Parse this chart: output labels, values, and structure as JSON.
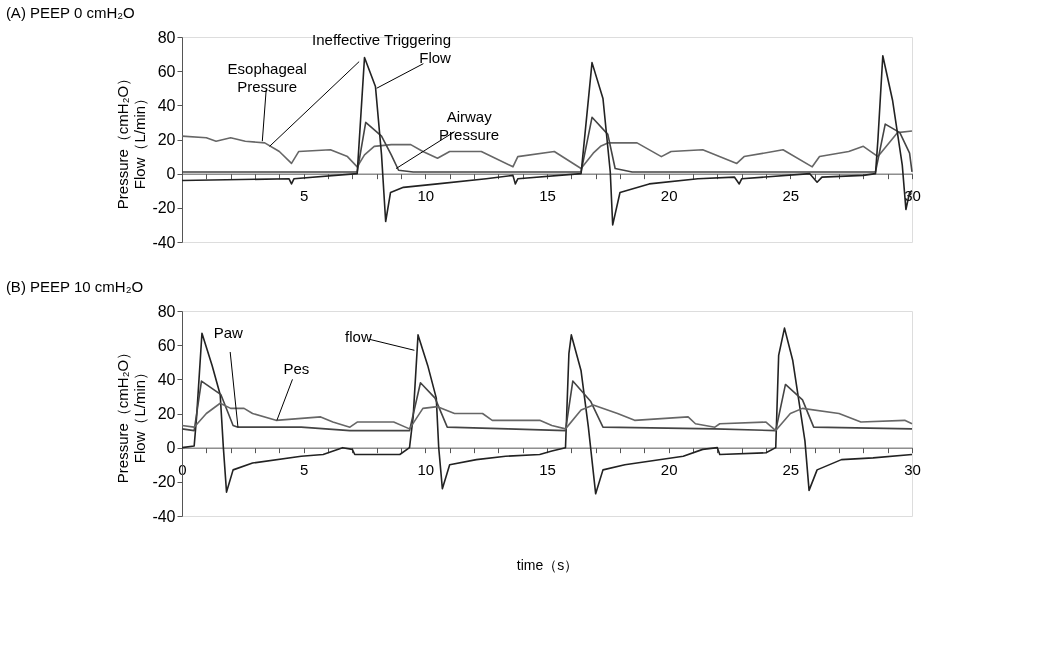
{
  "chart_data": [
    {
      "type": "line",
      "title": "(A) PEEP 0 cmH₂O",
      "ylabel": "Pressure（cmH₂O）\nFlow（L/min）",
      "xlim": [
        0,
        30
      ],
      "ylim": [
        -40,
        80
      ],
      "yticks": [
        -40,
        -20,
        0,
        20,
        40,
        60,
        80
      ],
      "xticks": [
        {
          "value": 1,
          "label": null
        },
        {
          "value": 2,
          "label": null
        },
        {
          "value": 3,
          "label": null
        },
        {
          "value": 4,
          "label": null
        },
        5,
        {
          "value": 6,
          "label": null
        },
        {
          "value": 7,
          "label": null
        },
        {
          "value": 8,
          "label": null
        },
        {
          "value": 9,
          "label": null
        },
        10,
        {
          "value": 11,
          "label": null
        },
        {
          "value": 12,
          "label": null
        },
        {
          "value": 13,
          "label": null
        },
        {
          "value": 14,
          "label": null
        },
        15,
        {
          "value": 16,
          "label": null
        },
        {
          "value": 17,
          "label": null
        },
        {
          "value": 18,
          "label": null
        },
        {
          "value": 19,
          "label": null
        },
        20,
        {
          "value": 21,
          "label": null
        },
        {
          "value": 22,
          "label": null
        },
        {
          "value": 23,
          "label": null
        },
        {
          "value": 24,
          "label": null
        },
        25,
        {
          "value": 26,
          "label": null
        },
        {
          "value": 27,
          "label": null
        },
        {
          "value": 28,
          "label": null
        },
        {
          "value": 29,
          "label": null
        },
        30
      ],
      "grid": false,
      "series": [
        {
          "color": "#666666",
          "x": [
            0,
            1,
            1.4,
            2,
            2.6,
            3.4,
            4,
            4.5,
            4.8,
            6.1,
            6.8,
            7.2,
            7.5,
            7.9,
            8.6,
            9.4,
            9.9,
            10.5,
            11,
            12.3,
            13.6,
            13.8,
            15.3,
            16.4,
            16.9,
            17.2,
            17.5,
            18.7,
            19.7,
            20.1,
            21.4,
            22.8,
            23.1,
            24.7,
            25.9,
            26.2,
            27.4,
            28,
            28.6,
            29.4,
            30
          ],
          "values": [
            22,
            21,
            19,
            21,
            19,
            18,
            13,
            6,
            13,
            14,
            10,
            4,
            11,
            16,
            17,
            17,
            13,
            9,
            13,
            13,
            4,
            10,
            13,
            3,
            12,
            16,
            18,
            18,
            10,
            13,
            14,
            6,
            10,
            14,
            4,
            10,
            13,
            16,
            10,
            24,
            25
          ]
        },
        {
          "color": "#444444",
          "x": [
            0,
            7.2,
            7.55,
            8.2,
            8.6,
            8.9,
            9.5,
            16.4,
            16.85,
            17.5,
            17.8,
            18.5,
            28.5,
            28.9,
            29.5,
            29.9,
            30
          ],
          "values": [
            1,
            1,
            30,
            22,
            11,
            2,
            1,
            1,
            33,
            23,
            3,
            1,
            1,
            29,
            24,
            12,
            1
          ]
        },
        {
          "color": "#222222",
          "x": [
            0,
            4.4,
            4.5,
            4.6,
            7.2,
            7.5,
            7.95,
            8.2,
            8.37,
            8.57,
            9.1,
            10.5,
            12.5,
            13.6,
            13.7,
            13.8,
            16.4,
            16.85,
            17.3,
            17.6,
            17.7,
            18,
            19.2,
            21.2,
            22.7,
            22.9,
            23,
            25.8,
            26.1,
            26.3,
            28,
            28.5,
            28.6,
            28.8,
            29.2,
            29.6,
            29.75,
            29.9,
            30
          ],
          "values": [
            -4,
            -3,
            -6,
            -3,
            0,
            68,
            51,
            11,
            -28,
            -11,
            -8,
            -6,
            -3,
            -1,
            -6,
            -3,
            0,
            65,
            44,
            1,
            -30,
            -11,
            -6,
            -3,
            -2,
            -6,
            -3,
            0,
            -5,
            -2,
            -1,
            0,
            20,
            69,
            43,
            5,
            -21,
            -11,
            -10
          ]
        }
      ],
      "annotations": [
        {
          "text": "Ineffective Triggering",
          "x": 3.6,
          "y": 16
        },
        {
          "text": "Esophageal Pressure",
          "x": 3.3,
          "y": 19
        },
        {
          "text": "Flow",
          "x": 8.0,
          "y": 50
        },
        {
          "text": "Airway Pressure",
          "x": 8.8,
          "y": 3
        }
      ]
    },
    {
      "type": "line",
      "title": "(B) PEEP 10 cmH₂O",
      "xlabel": "time（s）",
      "ylabel": "Pressure（cmH₂O）\nFlow（L/min）",
      "xlim": [
        0,
        30
      ],
      "ylim": [
        -40,
        80
      ],
      "yticks": [
        -40,
        -20,
        0,
        20,
        40,
        60,
        80
      ],
      "xticks": [
        0,
        {
          "value": 1,
          "label": null
        },
        {
          "value": 2,
          "label": null
        },
        {
          "value": 3,
          "label": null
        },
        {
          "value": 4,
          "label": null
        },
        5,
        {
          "value": 6,
          "label": null
        },
        {
          "value": 7,
          "label": null
        },
        {
          "value": 8,
          "label": null
        },
        {
          "value": 9,
          "label": null
        },
        10,
        {
          "value": 11,
          "label": null
        },
        {
          "value": 12,
          "label": null
        },
        {
          "value": 13,
          "label": null
        },
        {
          "value": 14,
          "label": null
        },
        15,
        {
          "value": 16,
          "label": null
        },
        {
          "value": 17,
          "label": null
        },
        {
          "value": 18,
          "label": null
        },
        {
          "value": 19,
          "label": null
        },
        20,
        {
          "value": 21,
          "label": null
        },
        {
          "value": 22,
          "label": null
        },
        {
          "value": 23,
          "label": null
        },
        {
          "value": 24,
          "label": null
        },
        25,
        {
          "value": 26,
          "label": null
        },
        {
          "value": 27,
          "label": null
        },
        {
          "value": 28,
          "label": null
        },
        {
          "value": 29,
          "label": null
        },
        30
      ],
      "grid": false,
      "series": [
        {
          "color": "#222222",
          "x": [
            0,
            0.5,
            0.6,
            0.82,
            1.24,
            1.57,
            1.7,
            1.83,
            2.1,
            2.9,
            4.9,
            5.8,
            6.6,
            7.0,
            7.1,
            8.95,
            9.35,
            9.5,
            9.7,
            10.1,
            10.45,
            10.55,
            10.7,
            11.0,
            12.1,
            13.3,
            14.7,
            15.2,
            15.76,
            15.9,
            16.0,
            16.4,
            16.7,
            17.0,
            17.3,
            18.2,
            20.6,
            21.4,
            22.0,
            22.1,
            24.0,
            24.4,
            24.52,
            24.76,
            25.1,
            25.6,
            25.77,
            26.1,
            27.1,
            28.4,
            30
          ],
          "values": [
            0,
            1,
            18,
            67,
            48,
            31,
            0,
            -26,
            -13,
            -9,
            -5,
            -4,
            0,
            -1,
            -4,
            -4,
            0,
            18,
            66,
            48,
            29,
            0,
            -24,
            -10,
            -7,
            -5,
            -4,
            -2,
            0,
            55,
            66,
            45,
            12,
            -27,
            -13,
            -10,
            -5,
            -1,
            0,
            -4,
            -3,
            0,
            54,
            70,
            51,
            4,
            -25,
            -13,
            -7,
            -6,
            -4
          ]
        },
        {
          "color": "#444444",
          "x": [
            0,
            0.5,
            0.8,
            1.6,
            2.1,
            2.3,
            4.9,
            6.9,
            9.35,
            9.8,
            10.4,
            10.9,
            13.4,
            15.76,
            16.06,
            16.8,
            17.3,
            21.9,
            24.4,
            24.8,
            25.5,
            25.96,
            30
          ],
          "values": [
            11,
            10,
            39,
            31,
            13,
            12,
            12,
            10,
            10,
            38,
            29,
            12,
            11,
            10,
            39,
            27,
            12,
            11,
            10,
            37,
            28,
            12,
            11
          ]
        },
        {
          "color": "#666666",
          "x": [
            0,
            0.5,
            1.0,
            1.57,
            2.0,
            2.55,
            2.9,
            3.86,
            5.7,
            6.2,
            6.9,
            7.2,
            8.7,
            9.35,
            9.9,
            10.5,
            11.2,
            12.35,
            12.75,
            14.7,
            15.2,
            15.76,
            16.4,
            16.9,
            17.9,
            18.6,
            20.8,
            21.1,
            21.9,
            22.1,
            24.0,
            24.4,
            25.0,
            25.5,
            27.0,
            27.9,
            29.7,
            30
          ],
          "values": [
            13,
            12,
            20,
            26,
            23,
            23,
            20,
            16,
            18,
            15,
            12,
            15,
            15,
            11,
            23,
            24,
            20,
            20,
            16,
            16,
            13,
            11,
            22,
            25,
            20,
            16,
            18,
            14,
            12,
            14,
            15,
            10,
            20,
            23,
            20,
            15,
            16,
            14
          ]
        }
      ],
      "annotations": [
        {
          "text": "Paw",
          "x": 2.3,
          "y": 12
        },
        {
          "text": "Pes",
          "x": 3.9,
          "y": 16
        },
        {
          "text": "flow",
          "x": 9.55,
          "y": 57
        }
      ]
    }
  ]
}
